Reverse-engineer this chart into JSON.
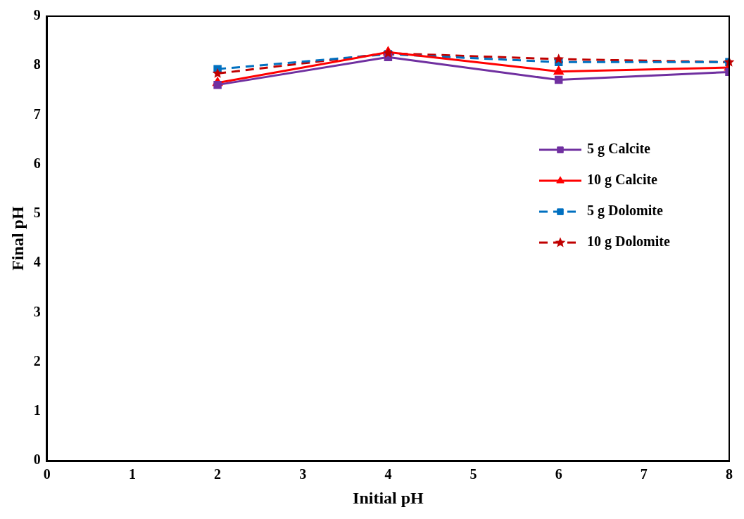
{
  "chart_data": {
    "type": "line",
    "xlabel": "Initial pH",
    "ylabel": "Final pH",
    "xlim": [
      0,
      8
    ],
    "xticks": [
      0,
      1,
      2,
      3,
      4,
      5,
      6,
      7,
      8
    ],
    "ylim": [
      0,
      9
    ],
    "yticks": [
      0,
      1,
      2,
      3,
      4,
      5,
      6,
      7,
      8,
      9
    ],
    "grid": false,
    "legend": "right",
    "series": [
      {
        "name": "5 g Calcite",
        "color": "#7030a0",
        "marker": "square",
        "line_style": "solid",
        "x": [
          2,
          4,
          6,
          8
        ],
        "values": [
          7.61,
          8.17,
          7.71,
          7.87
        ]
      },
      {
        "name": "10 g Calcite",
        "color": "#ff0000",
        "marker": "triangle",
        "line_style": "solid",
        "x": [
          2,
          4,
          6,
          8
        ],
        "values": [
          7.65,
          8.27,
          7.88,
          7.96
        ]
      },
      {
        "name": "5 g Dolomite",
        "color": "#0070c0",
        "marker": "square",
        "line_style": "dashed",
        "x": [
          2,
          4,
          6,
          8
        ],
        "values": [
          7.93,
          8.23,
          8.07,
          8.07
        ]
      },
      {
        "name": "10 g Dolomite",
        "color": "#c00000",
        "marker": "star",
        "line_style": "dashed",
        "x": [
          2,
          4,
          6,
          8
        ],
        "values": [
          7.84,
          8.25,
          8.13,
          8.07
        ]
      }
    ]
  }
}
